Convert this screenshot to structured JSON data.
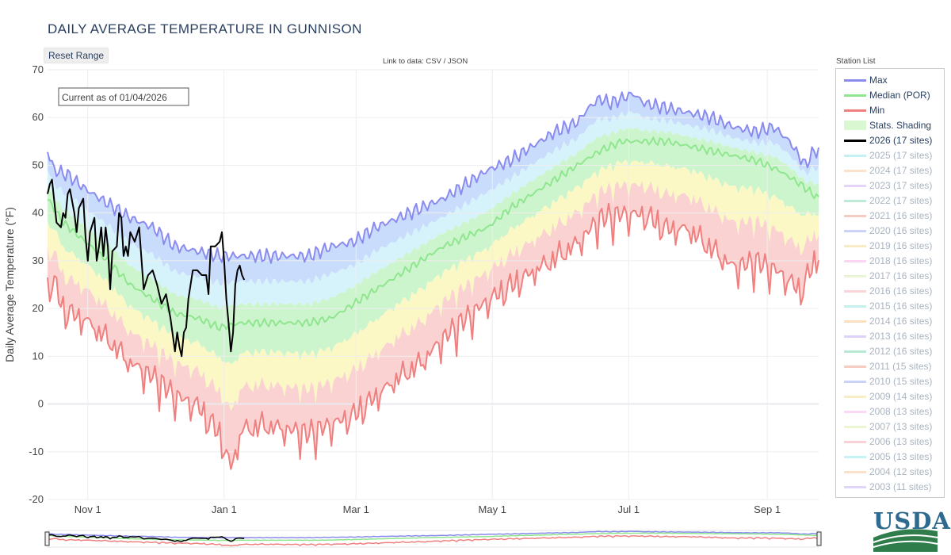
{
  "title": "DAILY AVERAGE TEMPERATURE IN GUNNISON",
  "reset_label": "Reset Range",
  "data_link": {
    "prefix": "Link to data: ",
    "csv": "CSV",
    "sep": " / ",
    "json": "JSON"
  },
  "current_as_of": "Current as of 01/04/2026",
  "legend_title": "Station List",
  "legend": [
    {
      "label": "Max",
      "color": "#8b8bef",
      "kind": "line",
      "state": "on"
    },
    {
      "label": "Median (POR)",
      "color": "#8fe68f",
      "kind": "line",
      "state": "on"
    },
    {
      "label": "Min",
      "color": "#f08080",
      "kind": "line",
      "state": "on"
    },
    {
      "label": "Stats. Shading",
      "color": "#d9f7d1",
      "kind": "box",
      "state": "on"
    },
    {
      "label": "2026 (17 sites)",
      "color": "#000000",
      "kind": "line",
      "state": "on"
    },
    {
      "label": "2025 (17 sites)",
      "color": "#7fdfe8",
      "kind": "line",
      "state": "dim"
    },
    {
      "label": "2024 (17 sites)",
      "color": "#f5c08a",
      "kind": "line",
      "state": "dim"
    },
    {
      "label": "2023 (17 sites)",
      "color": "#c0a0f0",
      "kind": "line",
      "state": "dim"
    },
    {
      "label": "2022 (17 sites)",
      "color": "#6fd3a8",
      "kind": "line",
      "state": "dim"
    },
    {
      "label": "2021 (16 sites)",
      "color": "#e88b7a",
      "kind": "line",
      "state": "dim"
    },
    {
      "label": "2020 (16 sites)",
      "color": "#8f9bf0",
      "kind": "line",
      "state": "dim"
    },
    {
      "label": "2019 (16 sites)",
      "color": "#f2d37a",
      "kind": "line",
      "state": "dim"
    },
    {
      "label": "2018 (16 sites)",
      "color": "#f5a3e8",
      "kind": "line",
      "state": "dim"
    },
    {
      "label": "2017 (16 sites)",
      "color": "#cfe8a0",
      "kind": "line",
      "state": "dim"
    },
    {
      "label": "2016 (16 sites)",
      "color": "#f5a0a8",
      "kind": "line",
      "state": "dim"
    },
    {
      "label": "2015 (16 sites)",
      "color": "#7fe0d8",
      "kind": "line",
      "state": "dim"
    },
    {
      "label": "2014 (16 sites)",
      "color": "#f5b87a",
      "kind": "line",
      "state": "dim"
    },
    {
      "label": "2013 (16 sites)",
      "color": "#b49cf0",
      "kind": "line",
      "state": "dim"
    },
    {
      "label": "2012 (16 sites)",
      "color": "#5fd0a0",
      "kind": "line",
      "state": "dim"
    },
    {
      "label": "2011 (15 sites)",
      "color": "#e8907a",
      "kind": "line",
      "state": "dim"
    },
    {
      "label": "2010 (15 sites)",
      "color": "#8a9cf0",
      "kind": "line",
      "state": "dim"
    },
    {
      "label": "2009 (14 sites)",
      "color": "#f2d880",
      "kind": "line",
      "state": "dim"
    },
    {
      "label": "2008 (13 sites)",
      "color": "#f5a8ec",
      "kind": "line",
      "state": "dim"
    },
    {
      "label": "2007 (13 sites)",
      "color": "#d3ea9c",
      "kind": "line",
      "state": "dim"
    },
    {
      "label": "2006 (13 sites)",
      "color": "#f59aa4",
      "kind": "line",
      "state": "dim"
    },
    {
      "label": "2005 (13 sites)",
      "color": "#7fe4ea",
      "kind": "line",
      "state": "dim"
    },
    {
      "label": "2004 (12 sites)",
      "color": "#f5bd85",
      "kind": "line",
      "state": "dim"
    },
    {
      "label": "2003 (11 sites)",
      "color": "#bca4f2",
      "kind": "line",
      "state": "dim"
    }
  ],
  "logo_text": "USDA",
  "chart_data": {
    "type": "line",
    "title": "DAILY AVERAGE TEMPERATURE IN GUNNISON",
    "xlabel": "",
    "ylabel": "Daily Average Temperature (°F)",
    "ylim": [
      -20,
      70
    ],
    "yticks": [
      -20,
      -10,
      0,
      10,
      20,
      30,
      40,
      50,
      60,
      70
    ],
    "x_unit": "day of water year (Oct 1 = day 0)",
    "xlim": [
      13,
      358
    ],
    "xticks": [
      {
        "day": 31,
        "label": "Nov  1"
      },
      {
        "day": 92,
        "label": "Jan  1"
      },
      {
        "day": 151,
        "label": "Mar  1"
      },
      {
        "day": 212,
        "label": "May  1"
      },
      {
        "day": 273,
        "label": "Jul  1"
      },
      {
        "day": 335,
        "label": "Sep  1"
      }
    ],
    "grid": true,
    "legend_position": "right",
    "series": [
      {
        "name": "Max",
        "color": "#8b8bef",
        "points": [
          [
            13,
            53
          ],
          [
            16,
            49
          ],
          [
            22,
            48
          ],
          [
            30,
            45
          ],
          [
            40,
            42
          ],
          [
            50,
            39
          ],
          [
            60,
            37
          ],
          [
            70,
            33
          ],
          [
            80,
            32
          ],
          [
            90,
            31
          ],
          [
            100,
            31
          ],
          [
            110,
            31
          ],
          [
            120,
            31
          ],
          [
            130,
            31
          ],
          [
            140,
            33
          ],
          [
            150,
            34
          ],
          [
            160,
            37
          ],
          [
            170,
            39
          ],
          [
            180,
            41
          ],
          [
            190,
            43
          ],
          [
            200,
            46
          ],
          [
            210,
            49
          ],
          [
            220,
            51
          ],
          [
            230,
            54
          ],
          [
            240,
            57
          ],
          [
            250,
            59
          ],
          [
            255,
            62
          ],
          [
            260,
            64
          ],
          [
            265,
            63
          ],
          [
            270,
            64
          ],
          [
            275,
            65
          ],
          [
            280,
            63
          ],
          [
            290,
            62
          ],
          [
            300,
            61
          ],
          [
            310,
            60
          ],
          [
            320,
            58
          ],
          [
            330,
            57
          ],
          [
            338,
            58
          ],
          [
            345,
            55
          ],
          [
            352,
            50
          ],
          [
            356,
            53
          ],
          [
            358,
            53
          ]
        ]
      },
      {
        "name": "Median (POR)",
        "color": "#8fe68f",
        "points": [
          [
            13,
            43
          ],
          [
            20,
            38
          ],
          [
            30,
            34
          ],
          [
            40,
            30
          ],
          [
            50,
            25
          ],
          [
            60,
            22
          ],
          [
            70,
            19
          ],
          [
            80,
            18
          ],
          [
            90,
            16
          ],
          [
            100,
            17
          ],
          [
            110,
            17
          ],
          [
            120,
            17
          ],
          [
            130,
            17
          ],
          [
            140,
            18
          ],
          [
            150,
            21
          ],
          [
            160,
            24
          ],
          [
            170,
            27
          ],
          [
            180,
            30
          ],
          [
            190,
            33
          ],
          [
            200,
            35
          ],
          [
            210,
            37
          ],
          [
            220,
            41
          ],
          [
            230,
            44
          ],
          [
            240,
            47
          ],
          [
            250,
            50
          ],
          [
            260,
            53
          ],
          [
            270,
            55
          ],
          [
            280,
            55
          ],
          [
            290,
            55
          ],
          [
            300,
            54
          ],
          [
            310,
            53
          ],
          [
            320,
            52
          ],
          [
            330,
            51
          ],
          [
            340,
            49
          ],
          [
            350,
            46
          ],
          [
            358,
            43
          ]
        ]
      },
      {
        "name": "Min",
        "color": "#f08080",
        "points": [
          [
            13,
            25
          ],
          [
            16,
            26
          ],
          [
            20,
            20
          ],
          [
            30,
            18
          ],
          [
            40,
            14
          ],
          [
            50,
            9
          ],
          [
            60,
            6
          ],
          [
            70,
            2
          ],
          [
            80,
            0
          ],
          [
            90,
            -6
          ],
          [
            95,
            -13
          ],
          [
            100,
            -5
          ],
          [
            110,
            -4
          ],
          [
            120,
            -5
          ],
          [
            130,
            -6
          ],
          [
            140,
            -4
          ],
          [
            150,
            -2
          ],
          [
            160,
            2
          ],
          [
            170,
            6
          ],
          [
            180,
            9
          ],
          [
            190,
            14
          ],
          [
            200,
            18
          ],
          [
            210,
            22
          ],
          [
            220,
            25
          ],
          [
            230,
            28
          ],
          [
            240,
            31
          ],
          [
            250,
            34
          ],
          [
            260,
            39
          ],
          [
            270,
            40
          ],
          [
            280,
            40
          ],
          [
            290,
            37
          ],
          [
            300,
            37
          ],
          [
            310,
            33
          ],
          [
            320,
            29
          ],
          [
            330,
            30
          ],
          [
            340,
            28
          ],
          [
            350,
            24
          ],
          [
            358,
            32
          ]
        ]
      },
      {
        "name": "2026 (17 sites)",
        "color": "#000000",
        "points": [
          [
            13,
            44
          ],
          [
            14,
            46
          ],
          [
            15,
            47
          ],
          [
            17,
            38
          ],
          [
            19,
            37
          ],
          [
            20,
            40
          ],
          [
            21,
            39
          ],
          [
            22,
            44
          ],
          [
            23,
            45
          ],
          [
            25,
            40
          ],
          [
            26,
            36
          ],
          [
            27,
            41
          ],
          [
            29,
            43
          ],
          [
            30,
            35
          ],
          [
            31,
            30
          ],
          [
            32,
            36
          ],
          [
            34,
            39
          ],
          [
            35,
            30
          ],
          [
            36,
            33
          ],
          [
            37,
            37
          ],
          [
            38,
            31
          ],
          [
            39,
            37
          ],
          [
            40,
            33
          ],
          [
            41,
            24
          ],
          [
            42,
            32
          ],
          [
            44,
            33
          ],
          [
            45,
            40
          ],
          [
            46,
            39
          ],
          [
            47,
            31
          ],
          [
            48,
            33
          ],
          [
            49,
            31
          ],
          [
            50,
            36
          ],
          [
            52,
            34
          ],
          [
            54,
            37
          ],
          [
            56,
            24
          ],
          [
            58,
            27
          ],
          [
            60,
            28
          ],
          [
            62,
            25
          ],
          [
            64,
            21
          ],
          [
            66,
            23
          ],
          [
            68,
            18
          ],
          [
            70,
            11
          ],
          [
            71,
            15
          ],
          [
            72,
            12
          ],
          [
            73,
            10
          ],
          [
            74,
            15
          ],
          [
            75,
            16
          ],
          [
            76,
            22
          ],
          [
            78,
            28
          ],
          [
            80,
            28
          ],
          [
            82,
            27
          ],
          [
            84,
            27
          ],
          [
            85,
            23
          ],
          [
            86,
            33
          ],
          [
            88,
            33
          ],
          [
            90,
            34
          ],
          [
            91,
            36
          ],
          [
            92,
            30
          ],
          [
            93,
            22
          ],
          [
            94,
            17
          ],
          [
            95,
            11
          ],
          [
            96,
            15
          ],
          [
            97,
            25
          ],
          [
            98,
            28
          ],
          [
            99,
            29
          ],
          [
            100,
            27
          ],
          [
            101,
            26
          ]
        ]
      }
    ],
    "shading_bands": [
      {
        "name": "max-to-upper",
        "color": "#c9dcfb"
      },
      {
        "name": "upper-decile",
        "color": "#d6f2fb"
      },
      {
        "name": "median-band",
        "color": "#cdf5cd"
      },
      {
        "name": "lower-decile",
        "color": "#fbf8c5"
      },
      {
        "name": "lower-to-min",
        "color": "#fbd2d2"
      }
    ]
  }
}
